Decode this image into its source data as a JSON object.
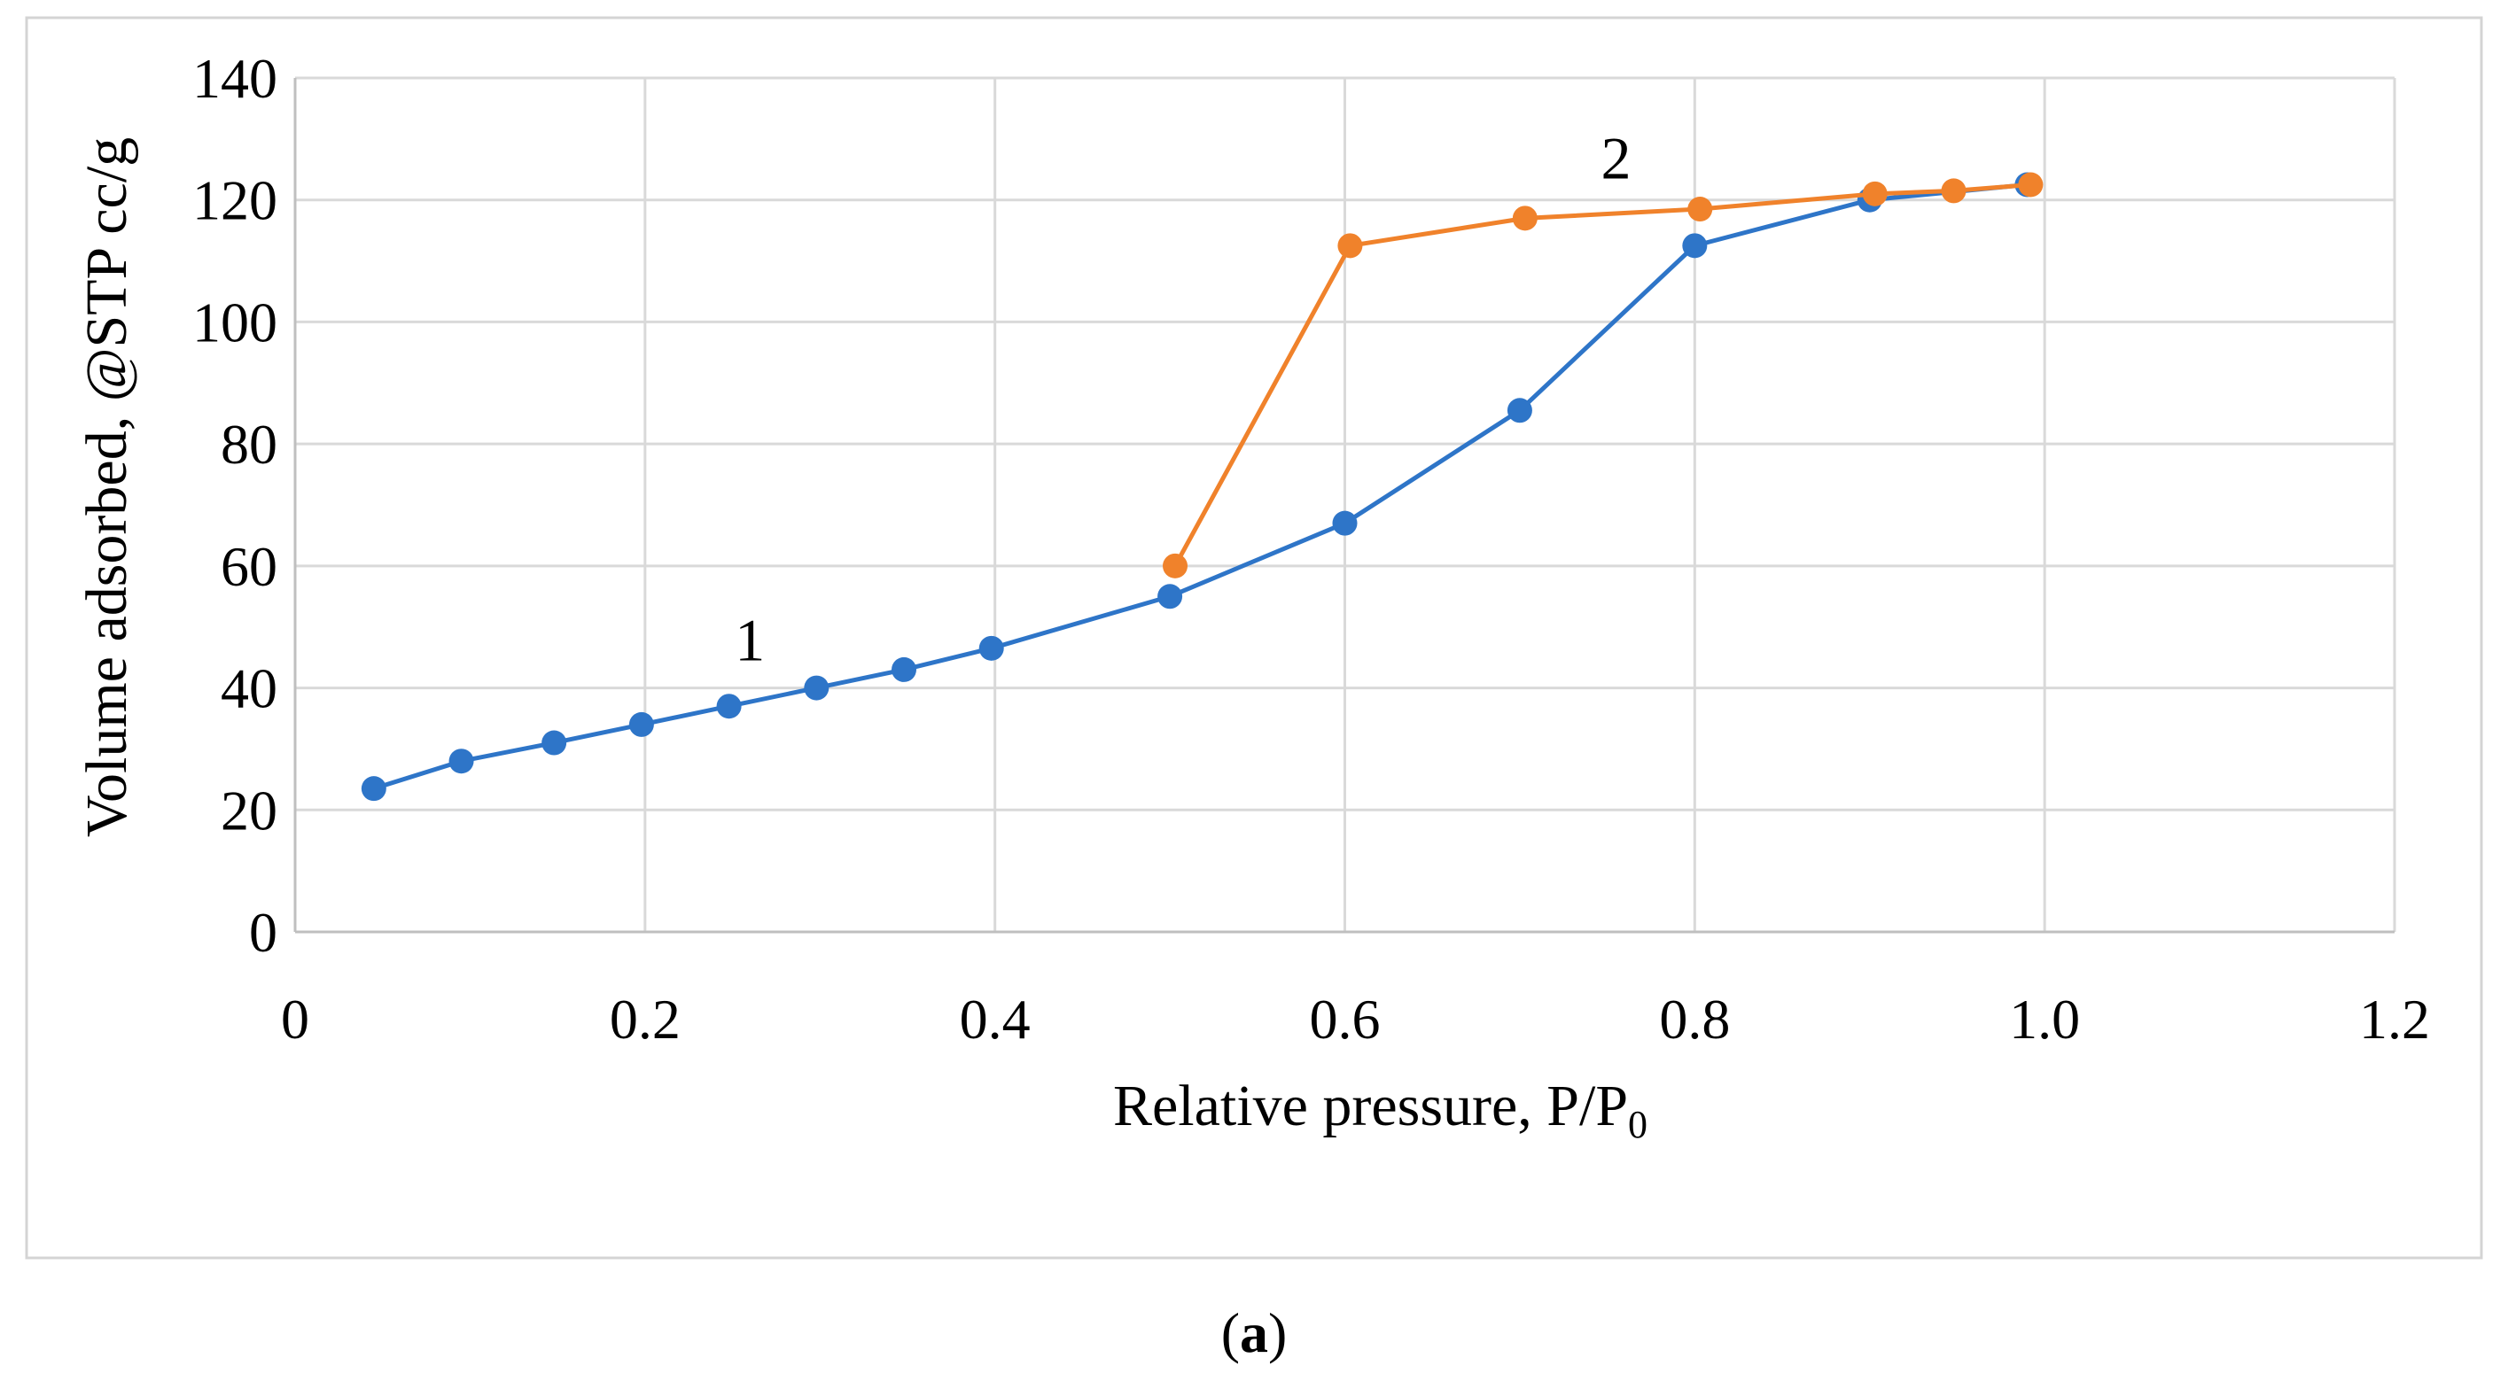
{
  "chart_data": {
    "type": "line",
    "xlabel": "Relative pressure, P/P",
    "xlabel_subscript": "0",
    "ylabel": "Volume adsorbed, @STP cc/g",
    "xlim": [
      0,
      1.2
    ],
    "ylim": [
      0,
      140
    ],
    "x_ticks": [
      "0",
      "0.2",
      "0.4",
      "0.6",
      "0.8",
      "1.0",
      "1.2"
    ],
    "x_tick_values": [
      0,
      0.2,
      0.4,
      0.6,
      0.8,
      1.0,
      1.2
    ],
    "y_ticks": [
      "0",
      "20",
      "40",
      "60",
      "80",
      "100",
      "120",
      "140"
    ],
    "y_tick_values": [
      0,
      20,
      40,
      60,
      80,
      100,
      120,
      140
    ],
    "grid": true,
    "legend": "none",
    "series": [
      {
        "name": "1",
        "color": "#2e75c8",
        "x": [
          0.045,
          0.095,
          0.148,
          0.198,
          0.248,
          0.298,
          0.348,
          0.398,
          0.5,
          0.6,
          0.7,
          0.8,
          0.9,
          0.99
        ],
        "y": [
          23.5,
          28,
          31,
          34,
          37,
          40,
          43,
          46.5,
          55,
          67,
          85.5,
          112.5,
          120,
          122.5
        ]
      },
      {
        "name": "2",
        "color": "#f0822b",
        "x": [
          0.503,
          0.603,
          0.703,
          0.803,
          0.903,
          0.948,
          0.992
        ],
        "y": [
          60,
          112.5,
          117,
          118.5,
          121,
          121.5,
          122.5
        ]
      }
    ],
    "annotations": [
      {
        "text": "1",
        "x": 0.26,
        "y": 48
      },
      {
        "text": "2",
        "x": 0.755,
        "y": 127
      }
    ]
  },
  "panel_label": {
    "open": "(",
    "letter": "a",
    "close": ")"
  }
}
